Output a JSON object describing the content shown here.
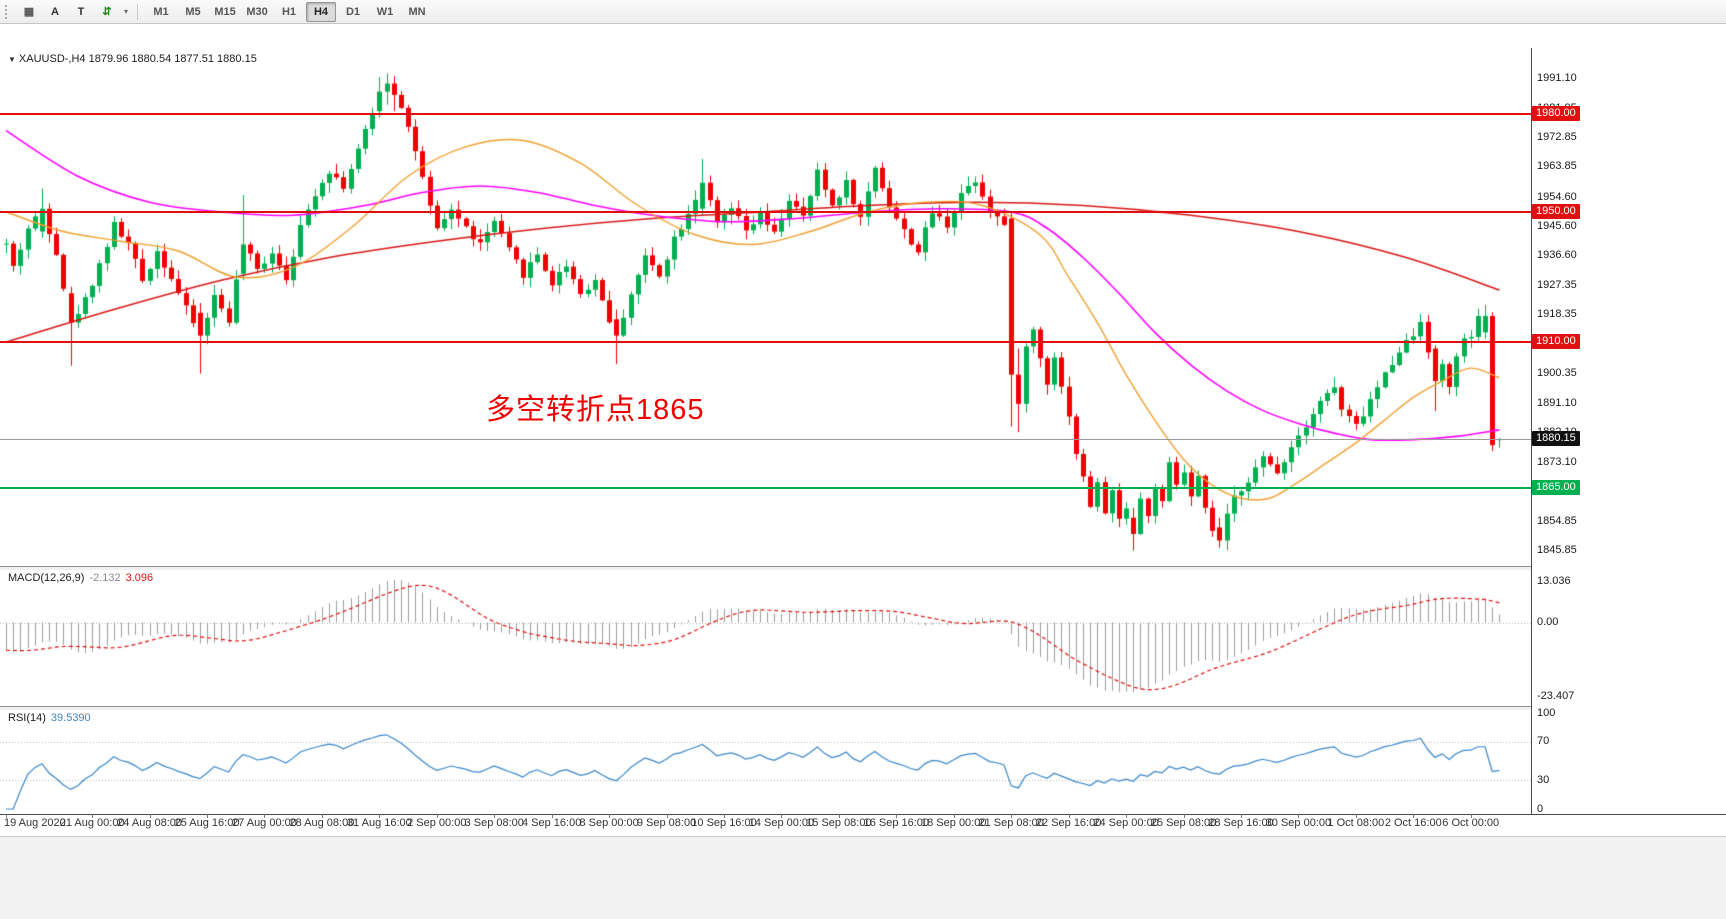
{
  "toolbar": {
    "tools": [
      {
        "name": "chart-type",
        "glyph": "▦",
        "color": "#555555"
      },
      {
        "name": "cursor-tool",
        "glyph": "A",
        "color": "#333333"
      },
      {
        "name": "text-tool",
        "glyph": "T",
        "color": "#333333"
      },
      {
        "name": "tick-chart",
        "glyph": "⇵",
        "color": "#1a8a1a"
      }
    ],
    "timeframes": [
      "M1",
      "M5",
      "M15",
      "M30",
      "H1",
      "H4",
      "D1",
      "W1",
      "MN"
    ],
    "active_timeframe": "H4"
  },
  "chart": {
    "symbol_line": "XAUUSD-,H4 1879.96 1880.54 1877.51 1880.15",
    "annotation": {
      "text": "多空转折点1865",
      "color": "#F00000"
    },
    "price_axis_labels": [
      "1991.10",
      "1981.85",
      "1972.85",
      "1963.85",
      "1954.60",
      "1945.60",
      "1936.60",
      "1927.35",
      "1918.35",
      "1900.35",
      "1891.10",
      "1882.10",
      "1873.10",
      "1863.85",
      "1854.85",
      "1845.85"
    ],
    "hlines": [
      {
        "price": 1980.0,
        "label": "1980.00",
        "color": "#E01010",
        "name": "resistance-line-1980"
      },
      {
        "price": 1950.0,
        "label": "1950.00",
        "color": "#E01010",
        "name": "resistance-line-1950"
      },
      {
        "price": 1910.0,
        "label": "1910.00",
        "color": "#E01010",
        "name": "resistance-line-1910"
      },
      {
        "price": 1865.0,
        "label": "1865.00",
        "color": "#00B050",
        "name": "support-line-1865"
      }
    ],
    "bid": {
      "price": 1880.15,
      "label": "1880.15",
      "line_color": "#9a9a9a",
      "tag_bg": "#111111"
    }
  },
  "chart_data": {
    "type": "candlestick",
    "symbol": "XAUUSD-",
    "timeframe": "H4",
    "current_bar": {
      "open": 1879.96,
      "high": 1880.54,
      "low": 1877.51,
      "close": 1880.15
    },
    "bars": 209,
    "seed": 42,
    "price_range": [
      1843,
      1995.5
    ],
    "close_waypoints": [
      [
        0,
        1940
      ],
      [
        1,
        1933
      ],
      [
        3,
        1945
      ],
      [
        5,
        1951
      ],
      [
        7,
        1938
      ],
      [
        9,
        1916
      ],
      [
        11,
        1923
      ],
      [
        13,
        1934
      ],
      [
        15,
        1946
      ],
      [
        17,
        1940
      ],
      [
        19,
        1929
      ],
      [
        21,
        1938
      ],
      [
        23,
        1930
      ],
      [
        25,
        1920
      ],
      [
        27,
        1912
      ],
      [
        29,
        1924
      ],
      [
        31,
        1917
      ],
      [
        33,
        1940
      ],
      [
        35,
        1932
      ],
      [
        37,
        1938
      ],
      [
        39,
        1930
      ],
      [
        41,
        1945
      ],
      [
        43,
        1956
      ],
      [
        45,
        1963
      ],
      [
        47,
        1958
      ],
      [
        49,
        1969
      ],
      [
        51,
        1980
      ],
      [
        53,
        1989
      ],
      [
        55,
        1983
      ],
      [
        57,
        1969
      ],
      [
        59,
        1951
      ],
      [
        60,
        1944
      ],
      [
        62,
        1951
      ],
      [
        64,
        1945
      ],
      [
        66,
        1940
      ],
      [
        68,
        1947
      ],
      [
        70,
        1938
      ],
      [
        72,
        1931
      ],
      [
        74,
        1937
      ],
      [
        76,
        1928
      ],
      [
        78,
        1934
      ],
      [
        80,
        1925
      ],
      [
        82,
        1929
      ],
      [
        84,
        1917
      ],
      [
        85,
        1912
      ],
      [
        87,
        1925
      ],
      [
        89,
        1936
      ],
      [
        91,
        1931
      ],
      [
        93,
        1942
      ],
      [
        95,
        1950
      ],
      [
        97,
        1959
      ],
      [
        99,
        1946
      ],
      [
        101,
        1951
      ],
      [
        103,
        1944
      ],
      [
        105,
        1949
      ],
      [
        107,
        1943
      ],
      [
        109,
        1954
      ],
      [
        111,
        1948
      ],
      [
        113,
        1962
      ],
      [
        115,
        1952
      ],
      [
        117,
        1959
      ],
      [
        119,
        1948
      ],
      [
        121,
        1964
      ],
      [
        123,
        1952
      ],
      [
        125,
        1944
      ],
      [
        127,
        1938
      ],
      [
        129,
        1950
      ],
      [
        131,
        1946
      ],
      [
        133,
        1956
      ],
      [
        135,
        1960
      ],
      [
        137,
        1951
      ],
      [
        139,
        1946
      ],
      [
        140,
        1900
      ],
      [
        141,
        1891
      ],
      [
        142,
        1908
      ],
      [
        143,
        1914
      ],
      [
        144,
        1905
      ],
      [
        145,
        1898
      ],
      [
        146,
        1906
      ],
      [
        147,
        1896
      ],
      [
        148,
        1888
      ],
      [
        149,
        1876
      ],
      [
        150,
        1868
      ],
      [
        151,
        1860
      ],
      [
        152,
        1866
      ],
      [
        153,
        1858
      ],
      [
        154,
        1864
      ],
      [
        155,
        1855
      ],
      [
        156,
        1860
      ],
      [
        157,
        1851
      ],
      [
        158,
        1862
      ],
      [
        159,
        1856
      ],
      [
        160,
        1866
      ],
      [
        161,
        1860
      ],
      [
        162,
        1872
      ],
      [
        163,
        1866
      ],
      [
        164,
        1870
      ],
      [
        165,
        1862
      ],
      [
        166,
        1868
      ],
      [
        167,
        1858
      ],
      [
        168,
        1852
      ],
      [
        169,
        1849
      ],
      [
        170,
        1856
      ],
      [
        171,
        1862
      ],
      [
        173,
        1868
      ],
      [
        175,
        1874
      ],
      [
        177,
        1870
      ],
      [
        179,
        1878
      ],
      [
        181,
        1885
      ],
      [
        183,
        1892
      ],
      [
        185,
        1896
      ],
      [
        186,
        1889
      ],
      [
        188,
        1884
      ],
      [
        190,
        1892
      ],
      [
        192,
        1900
      ],
      [
        194,
        1908
      ],
      [
        196,
        1912
      ],
      [
        197,
        1917
      ],
      [
        198,
        1908
      ],
      [
        199,
        1898
      ],
      [
        200,
        1903
      ],
      [
        201,
        1897
      ],
      [
        202,
        1905
      ],
      [
        203,
        1910
      ],
      [
        204,
        1912
      ],
      [
        205,
        1917
      ],
      [
        206,
        1918
      ],
      [
        207,
        1878.3
      ],
      [
        208,
        1880.15
      ]
    ],
    "bar_overrides": {
      "5": [
        1944,
        1957.2,
        1942,
        1951
      ],
      "9": [
        1925,
        1927,
        1902.7,
        1916
      ],
      "27": [
        1919,
        1922,
        1900.3,
        1912
      ],
      "33": [
        1931,
        1955.2,
        1929,
        1940
      ],
      "52": [
        1981,
        1991.5,
        1979,
        1987
      ],
      "53": [
        1987,
        1992.6,
        1983,
        1989.5
      ],
      "54": [
        1989.5,
        1991.8,
        1981,
        1986
      ],
      "85": [
        1917,
        1920,
        1903.2,
        1912
      ],
      "97": [
        1951,
        1966.3,
        1949,
        1959
      ],
      "140": [
        1948,
        1950,
        1884,
        1900
      ],
      "141": [
        1900,
        1908,
        1882.3,
        1891
      ],
      "157": [
        1856,
        1859,
        1845.9,
        1851
      ],
      "169": [
        1853,
        1856,
        1846.8,
        1849
      ],
      "199": [
        1908,
        1909,
        1888.8,
        1898
      ],
      "206": [
        1913,
        1921.4,
        1911,
        1918
      ],
      "207": [
        1918,
        1919.2,
        1876.5,
        1878.3
      ],
      "208": [
        1879.96,
        1880.54,
        1877.51,
        1880.15
      ]
    },
    "overlays": [
      {
        "name": "ma-slow-red",
        "color": "#D81818",
        "width": 1.6,
        "points": [
          [
            0,
            1910
          ],
          [
            15,
            1920
          ],
          [
            30,
            1929
          ],
          [
            45,
            1936
          ],
          [
            60,
            1941
          ],
          [
            75,
            1945
          ],
          [
            90,
            1948
          ],
          [
            105,
            1950
          ],
          [
            120,
            1952
          ],
          [
            135,
            1953
          ],
          [
            150,
            1952
          ],
          [
            165,
            1949
          ],
          [
            180,
            1944
          ],
          [
            195,
            1936
          ],
          [
            208,
            1926
          ]
        ]
      },
      {
        "name": "ma-medium-magenta",
        "color": "#FF00FF",
        "width": 1.6,
        "points": [
          [
            0,
            1975
          ],
          [
            10,
            1961
          ],
          [
            20,
            1953
          ],
          [
            30,
            1950
          ],
          [
            40,
            1949
          ],
          [
            50,
            1952
          ],
          [
            58,
            1956
          ],
          [
            66,
            1958
          ],
          [
            74,
            1956
          ],
          [
            82,
            1952
          ],
          [
            90,
            1949
          ],
          [
            100,
            1947
          ],
          [
            110,
            1948
          ],
          [
            120,
            1950
          ],
          [
            130,
            1951
          ],
          [
            140,
            1950
          ],
          [
            145,
            1945
          ],
          [
            150,
            1936
          ],
          [
            155,
            1925
          ],
          [
            160,
            1913
          ],
          [
            165,
            1903
          ],
          [
            170,
            1895
          ],
          [
            175,
            1889
          ],
          [
            180,
            1885
          ],
          [
            185,
            1882
          ],
          [
            190,
            1880
          ],
          [
            196,
            1880
          ],
          [
            202,
            1881
          ],
          [
            208,
            1883
          ]
        ]
      },
      {
        "name": "ma-fast-orange",
        "color": "#F0A030",
        "width": 1.4,
        "points": [
          [
            0,
            1950
          ],
          [
            8,
            1944
          ],
          [
            16,
            1941
          ],
          [
            24,
            1938
          ],
          [
            32,
            1930
          ],
          [
            40,
            1933
          ],
          [
            48,
            1945
          ],
          [
            56,
            1961
          ],
          [
            64,
            1970
          ],
          [
            72,
            1972
          ],
          [
            80,
            1965
          ],
          [
            88,
            1952
          ],
          [
            96,
            1943
          ],
          [
            104,
            1940
          ],
          [
            112,
            1944
          ],
          [
            120,
            1950
          ],
          [
            128,
            1953
          ],
          [
            136,
            1952
          ],
          [
            144,
            1943
          ],
          [
            148,
            1930
          ],
          [
            152,
            1916
          ],
          [
            156,
            1900
          ],
          [
            160,
            1886
          ],
          [
            164,
            1874
          ],
          [
            168,
            1866
          ],
          [
            172,
            1862
          ],
          [
            176,
            1862
          ],
          [
            180,
            1867
          ],
          [
            184,
            1873
          ],
          [
            188,
            1879
          ],
          [
            192,
            1886
          ],
          [
            196,
            1893
          ],
          [
            200,
            1898
          ],
          [
            204,
            1902
          ],
          [
            208,
            1899
          ]
        ]
      }
    ],
    "x_axis_labels": [
      {
        "bar": 0,
        "text": "19 Aug 2020"
      },
      {
        "bar": 12,
        "text": "21 Aug 00:00"
      },
      {
        "bar": 20,
        "text": "24 Aug 08:00"
      },
      {
        "bar": 28,
        "text": "25 Aug 16:00"
      },
      {
        "bar": 36,
        "text": "27 Aug 00:00"
      },
      {
        "bar": 44,
        "text": "28 Aug 08:00"
      },
      {
        "bar": 52,
        "text": "31 Aug 16:00"
      },
      {
        "bar": 60,
        "text": "2 Sep 00:00"
      },
      {
        "bar": 68,
        "text": "3 Sep 08:00"
      },
      {
        "bar": 76,
        "text": "4 Sep 16:00"
      },
      {
        "bar": 84,
        "text": "8 Sep 00:00"
      },
      {
        "bar": 92,
        "text": "9 Sep 08:00"
      },
      {
        "bar": 100,
        "text": "10 Sep 16:00"
      },
      {
        "bar": 108,
        "text": "14 Sep 00:00"
      },
      {
        "bar": 116,
        "text": "15 Sep 08:00"
      },
      {
        "bar": 124,
        "text": "16 Sep 16:00"
      },
      {
        "bar": 132,
        "text": "18 Sep 00:00"
      },
      {
        "bar": 140,
        "text": "21 Sep 08:00"
      },
      {
        "bar": 148,
        "text": "22 Sep 16:00"
      },
      {
        "bar": 156,
        "text": "24 Sep 00:00"
      },
      {
        "bar": 164,
        "text": "25 Sep 08:00"
      },
      {
        "bar": 172,
        "text": "28 Sep 16:00"
      },
      {
        "bar": 180,
        "text": "30 Sep 00:00"
      },
      {
        "bar": 188,
        "text": "1 Oct 08:00"
      },
      {
        "bar": 196,
        "text": "2 Oct 16:00"
      },
      {
        "bar": 204,
        "text": "6 Oct 00:00"
      }
    ],
    "indicators": {
      "macd": {
        "label": "MACD(12,26,9)",
        "value_main": "-2.132",
        "value_signal": "3.096",
        "params": [
          12,
          26,
          9
        ],
        "axis_labels": [
          "13.036",
          "0.00",
          "-23.407"
        ]
      },
      "rsi": {
        "label": "RSI(14)",
        "value": "39.5390",
        "period": 14,
        "levels": [
          70,
          30
        ],
        "axis_labels": [
          "100",
          "70",
          "30",
          "0"
        ]
      }
    },
    "colors": {
      "up": "#00B050",
      "down": "#F00000",
      "macd_hist": "#9c9c9c",
      "macd_signal": "#E01010",
      "rsi": "#3A87C8",
      "grid_dotted": "#b5b5b5"
    }
  }
}
